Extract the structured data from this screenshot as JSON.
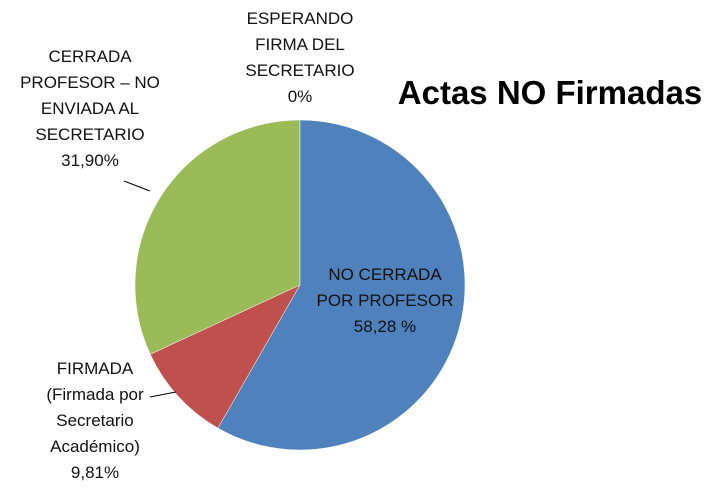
{
  "chart_data": {
    "type": "pie",
    "title": "Actas NO Firmadas",
    "categories": [
      "NO CERRADA POR PROFESOR",
      "FIRMADA (Firmada por Secretario Académico)",
      "CERRADA PROFESOR – NO ENVIADA AL SECRETARIO",
      "ESPERANDO FIRMA DEL SECRETARIO"
    ],
    "values": [
      58.28,
      9.81,
      31.9,
      0
    ],
    "value_labels": [
      "58,28 %",
      "9,81%",
      "31,90%",
      "0%"
    ],
    "colors": [
      "#4f81bd",
      "#c0504d",
      "#9bbb59",
      "#8064a2"
    ]
  }
}
